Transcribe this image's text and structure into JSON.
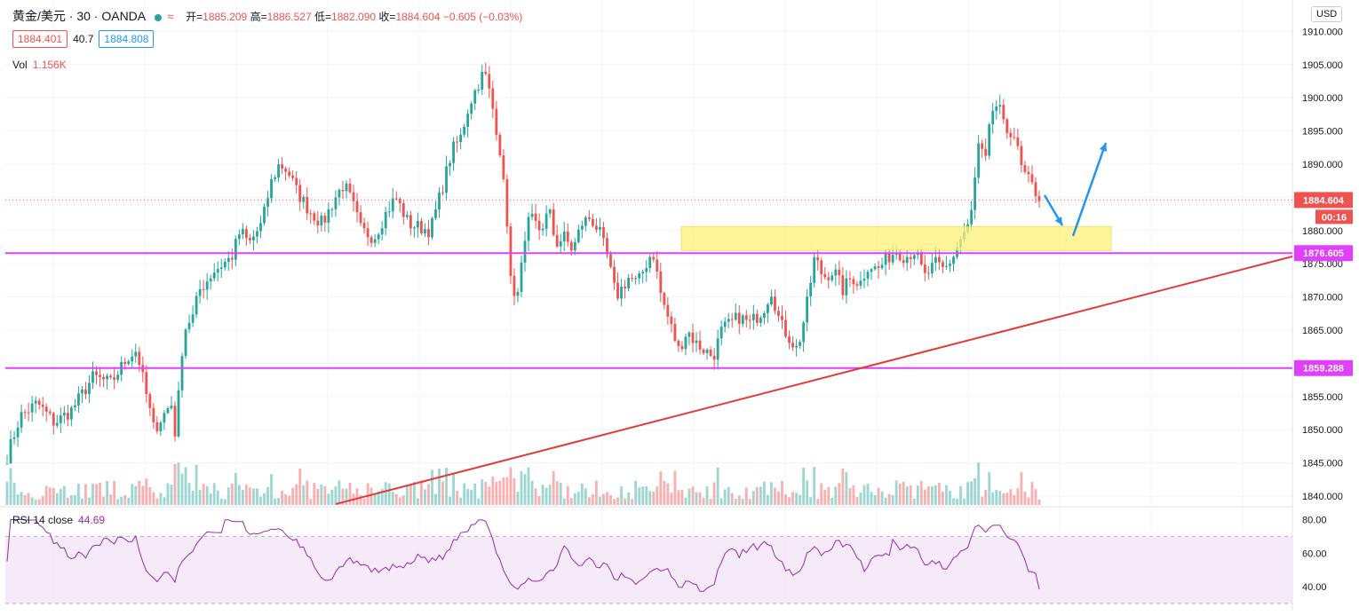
{
  "legend": {
    "symbol": "黄金/美元 · 30 · OANDA",
    "ohlc": [
      {
        "k": "开=",
        "v": "1885.209"
      },
      {
        "k": "高=",
        "v": "1886.527"
      },
      {
        "k": "低=",
        "v": "1882.090"
      },
      {
        "k": "收=",
        "v": "1884.604"
      }
    ],
    "change": "−0.605 (−0.03%)",
    "bid": "1884.401",
    "spread": "40.7",
    "ask": "1884.808",
    "vol_label": "Vol",
    "vol_value": "1.156K",
    "rsi_label": "RSI 14 close",
    "rsi_value": "44.69",
    "currency": "USD",
    "wave_glyph": "≈"
  },
  "colors": {
    "up": "#26a69a",
    "down": "#ef5350",
    "support": "#e040fb",
    "trendline": "#e53935",
    "zone": "#fff176",
    "arrow": "#2196f3",
    "rsi": "#9c27b0"
  },
  "price_labels": {
    "last": {
      "value": 1884.604,
      "text": "1884.604",
      "countdown": "00:16"
    },
    "levels": [
      {
        "value": 1876.605,
        "text": "1876.605"
      },
      {
        "value": 1859.288,
        "text": "1859.288"
      }
    ]
  },
  "chart_data": [
    {
      "type": "candlestick",
      "title": "黄金/美元 · 30 · OANDA",
      "y_ticks": [
        "1910.000",
        "1905.000",
        "1900.000",
        "1895.000",
        "1890.000",
        "1885.000",
        "1880.000",
        "1875.000",
        "1870.000",
        "1865.000",
        "1860.000",
        "1855.000",
        "1850.000",
        "1845.000",
        "1840.000"
      ],
      "ylim": [
        1838.5,
        1911.5
      ],
      "bars": 290,
      "path_points": [
        [
          0,
          1846
        ],
        [
          6,
          1852
        ],
        [
          14,
          1854
        ],
        [
          22,
          1851
        ],
        [
          30,
          1853
        ],
        [
          40,
          1858
        ],
        [
          48,
          1857
        ],
        [
          56,
          1861
        ],
        [
          60,
          1862
        ],
        [
          64,
          1856
        ],
        [
          68,
          1850
        ],
        [
          72,
          1852
        ],
        [
          76,
          1854
        ],
        [
          78,
          1849
        ],
        [
          81,
          1862
        ],
        [
          83,
          1866
        ],
        [
          86,
          1867
        ],
        [
          89,
          1871
        ],
        [
          96,
          1874
        ],
        [
          104,
          1876
        ],
        [
          108,
          1880
        ],
        [
          112,
          1878
        ],
        [
          118,
          1881
        ],
        [
          122,
          1887
        ],
        [
          126,
          1890
        ],
        [
          130,
          1889
        ],
        [
          134,
          1886
        ],
        [
          140,
          1883
        ],
        [
          146,
          1881
        ],
        [
          152,
          1885
        ],
        [
          156,
          1887
        ],
        [
          160,
          1884
        ],
        [
          164,
          1880
        ],
        [
          170,
          1879
        ],
        [
          176,
          1883
        ],
        [
          180,
          1885
        ],
        [
          186,
          1881
        ],
        [
          196,
          1880
        ],
        [
          202,
          1887
        ],
        [
          206,
          1892
        ],
        [
          210,
          1894
        ],
        [
          214,
          1899
        ],
        [
          218,
          1902
        ],
        [
          221,
          1904
        ],
        [
          224,
          1900
        ],
        [
          228,
          1893
        ],
        [
          232,
          1880
        ],
        [
          234,
          1868
        ],
        [
          238,
          1874
        ],
        [
          242,
          1882
        ],
        [
          247,
          1880
        ],
        [
          251,
          1883
        ],
        [
          254,
          1878
        ],
        [
          258,
          1879
        ],
        [
          262,
          1877
        ],
        [
          266,
          1881
        ],
        [
          270,
          1882
        ],
        [
          274,
          1880
        ],
        [
          278,
          1876
        ],
        [
          282,
          1870
        ],
        [
          288,
          1873
        ],
        [
          292,
          1872
        ],
        [
          296,
          1875
        ],
        [
          299,
          1877
        ],
        [
          303,
          1870
        ],
        [
          307,
          1866
        ],
        [
          311,
          1862
        ],
        [
          315,
          1865
        ],
        [
          319,
          1863
        ],
        [
          323,
          1862
        ],
        [
          327,
          1861
        ],
        [
          331,
          1865
        ],
        [
          335,
          1866
        ],
        [
          339,
          1867
        ],
        [
          344,
          1866
        ],
        [
          350,
          1868
        ],
        [
          354,
          1871
        ],
        [
          358,
          1866
        ],
        [
          362,
          1864
        ],
        [
          366,
          1862
        ],
        [
          370,
          1868
        ],
        [
          374,
          1876
        ],
        [
          378,
          1873
        ],
        [
          383,
          1874
        ],
        [
          387,
          1871
        ],
        [
          391,
          1873
        ],
        [
          395,
          1872
        ],
        [
          399,
          1875
        ],
        [
          403,
          1874
        ],
        [
          408,
          1876
        ],
        [
          412,
          1877
        ],
        [
          416,
          1876
        ],
        [
          420,
          1877
        ],
        [
          425,
          1873
        ],
        [
          430,
          1875
        ],
        [
          434,
          1874
        ],
        [
          438,
          1876
        ],
        [
          442,
          1879
        ],
        [
          446,
          1881
        ],
        [
          450,
          1893
        ],
        [
          453,
          1890
        ],
        [
          456,
          1898
        ],
        [
          459,
          1899
        ],
        [
          462,
          1895
        ],
        [
          466,
          1895
        ],
        [
          470,
          1889
        ],
        [
          474,
          1887
        ],
        [
          478,
          1885
        ]
      ],
      "volume": {
        "label": "Vol",
        "last": "1.156K"
      },
      "annotations": {
        "support_levels": [
          1876.605,
          1859.288
        ],
        "demand_zone": [
          1877.0,
          1880.6
        ],
        "trendline": "rising from 1838.5 to 1876.1",
        "arrows": "down to zone then up"
      }
    },
    {
      "type": "line",
      "title": "RSI 14 close",
      "y_ticks": [
        "80.00",
        "60.00",
        "40.00"
      ],
      "ylim": [
        30,
        85
      ],
      "bands": [
        70,
        30
      ],
      "last": 44.69
    }
  ]
}
